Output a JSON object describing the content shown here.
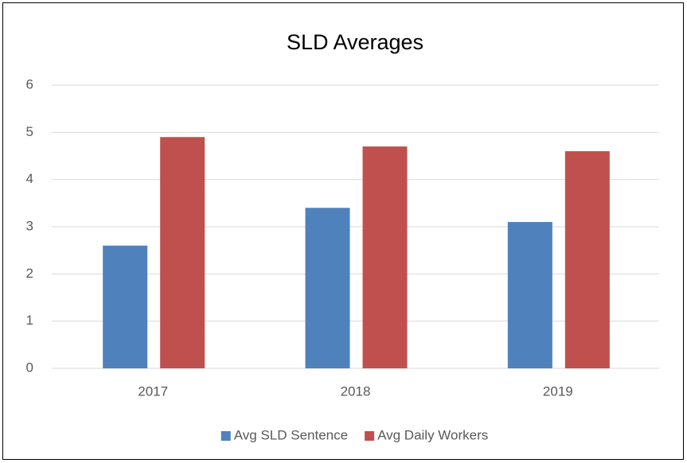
{
  "chart_data": {
    "type": "bar",
    "title": "SLD Averages",
    "categories": [
      "2017",
      "2018",
      "2019"
    ],
    "series": [
      {
        "name": "Avg SLD Sentence",
        "color": "#4f81bd",
        "values": [
          2.6,
          3.4,
          3.1
        ]
      },
      {
        "name": "Avg Daily Workers",
        "color": "#c0504d",
        "values": [
          4.9,
          4.7,
          4.6
        ]
      }
    ],
    "ylim": [
      0,
      6
    ],
    "yticks": [
      0,
      1,
      2,
      3,
      4,
      5,
      6
    ],
    "grid": true,
    "legend": "bottom"
  }
}
